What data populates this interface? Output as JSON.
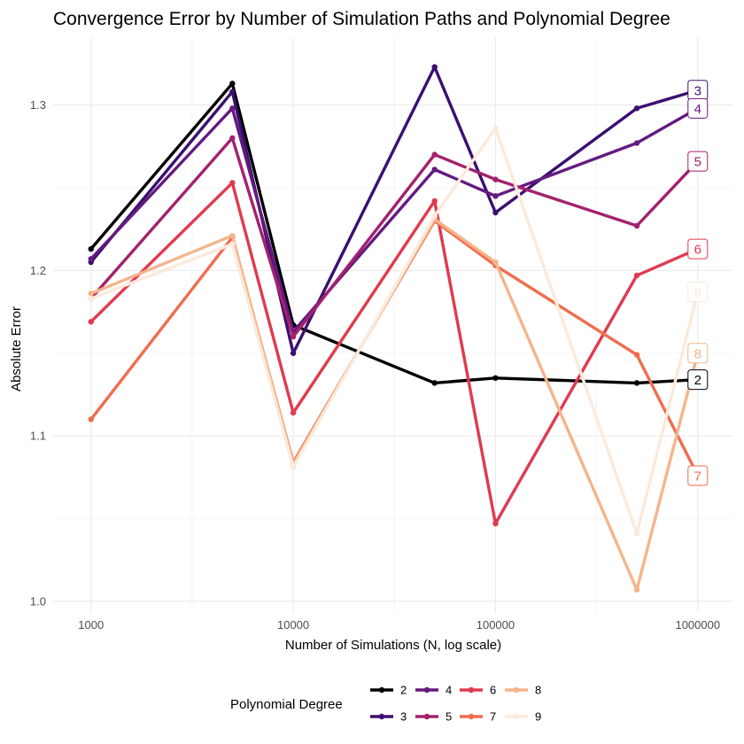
{
  "chart_data": {
    "type": "line",
    "title": "Convergence Error by Number of Simulation Paths and Polynomial Degree",
    "xlabel": "Number of Simulations (N, log scale)",
    "ylabel": "Absolute Error",
    "x_scale": "log10",
    "x_ticks": [
      "1000",
      "10000",
      "100000",
      "1000000"
    ],
    "y_ticks": [
      "1.0",
      "1.1",
      "1.2",
      "1.3"
    ],
    "xlim": [
      650,
      1500000
    ],
    "ylim": [
      0.993,
      1.341
    ],
    "grid": true,
    "legend_position": "bottom",
    "legend_title": "Polynomial Degree",
    "x": [
      1000,
      5000,
      10000,
      50000,
      100000,
      500000,
      1000000
    ],
    "series": [
      {
        "name": "2",
        "color": "#000004",
        "values": [
          1.213,
          1.313,
          1.167,
          1.132,
          1.135,
          1.132,
          1.134
        ]
      },
      {
        "name": "3",
        "color": "#3b0f70",
        "values": [
          1.205,
          1.308,
          1.15,
          1.323,
          1.235,
          1.298,
          1.309
        ]
      },
      {
        "name": "4",
        "color": "#641a80",
        "values": [
          1.207,
          1.298,
          1.163,
          1.261,
          1.245,
          1.277,
          1.298
        ]
      },
      {
        "name": "5",
        "color": "#a3216d",
        "values": [
          1.183,
          1.28,
          1.16,
          1.27,
          1.255,
          1.227,
          1.266
        ]
      },
      {
        "name": "6",
        "color": "#e03a4f",
        "values": [
          1.169,
          1.253,
          1.114,
          1.242,
          1.047,
          1.197,
          1.213
        ]
      },
      {
        "name": "7",
        "color": "#f06d4e",
        "values": [
          1.11,
          1.22,
          1.084,
          1.23,
          1.203,
          1.149,
          1.076
        ]
      },
      {
        "name": "8",
        "color": "#f4b58c",
        "values": [
          1.186,
          1.221,
          1.083,
          1.231,
          1.205,
          1.007,
          1.15
        ]
      },
      {
        "name": "9",
        "color": "#fbeadb",
        "values": [
          1.183,
          1.216,
          1.081,
          1.233,
          1.286,
          1.041,
          1.187
        ]
      }
    ]
  }
}
